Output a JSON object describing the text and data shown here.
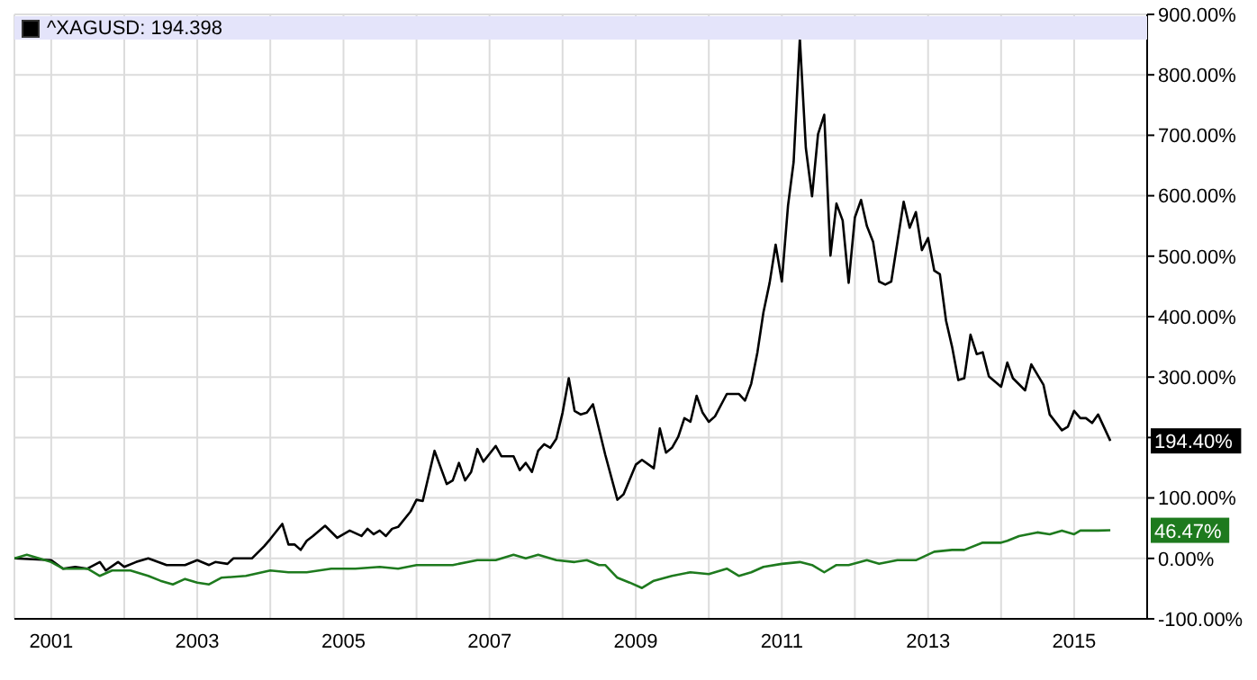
{
  "chart_data": {
    "type": "line",
    "xlim": [
      "2000-07",
      "2016-01"
    ],
    "xticks": [
      {
        "value": "2001-01",
        "label": "2001"
      },
      {
        "value": "2002-01",
        "label": null
      },
      {
        "value": "2003-01",
        "label": "2003"
      },
      {
        "value": "2004-01",
        "label": null
      },
      {
        "value": "2005-01",
        "label": "2005"
      },
      {
        "value": "2006-01",
        "label": null
      },
      {
        "value": "2007-01",
        "label": "2007"
      },
      {
        "value": "2008-01",
        "label": null
      },
      {
        "value": "2009-01",
        "label": "2009"
      },
      {
        "value": "2010-01",
        "label": null
      },
      {
        "value": "2011-01",
        "label": "2011"
      },
      {
        "value": "2012-01",
        "label": null
      },
      {
        "value": "2013-01",
        "label": "2013"
      },
      {
        "value": "2014-01",
        "label": null
      },
      {
        "value": "2015-01",
        "label": "2015"
      }
    ],
    "ylim": [
      -100,
      900
    ],
    "yticks": [
      {
        "value": -100,
        "label": "-100.00%"
      },
      {
        "value": 0,
        "label": "0.00%"
      },
      {
        "value": 100,
        "label": "100.00%"
      },
      {
        "value": 200,
        "label": null
      },
      {
        "value": 300,
        "label": "300.00%"
      },
      {
        "value": 400,
        "label": "400.00%"
      },
      {
        "value": 500,
        "label": "500.00%"
      },
      {
        "value": 600,
        "label": "600.00%"
      },
      {
        "value": 700,
        "label": "700.00%"
      },
      {
        "value": 800,
        "label": "800.00%"
      },
      {
        "value": 900,
        "label": "900.00%"
      }
    ],
    "grid": true,
    "legend": "top left",
    "marker": "none",
    "annotations": [
      {
        "text": "194.40%",
        "x": "2015-07",
        "y": 194.4
      },
      {
        "text": "46.47%",
        "x": "2015-07",
        "y": 46.47
      }
    ],
    "series": [
      {
        "name": "^XAGUSD: 194.398",
        "color": "#000000",
        "x": [
          "2000-07",
          "2001-01",
          "2001-03",
          "2001-05",
          "2001-07",
          "2001-09",
          "2001-10",
          "2001-12",
          "2002-01",
          "2002-03",
          "2002-05",
          "2002-08",
          "2002-11",
          "2003-01",
          "2003-03",
          "2003-04",
          "2003-06",
          "2003-07",
          "2003-10",
          "2003-12",
          "2004-01",
          "2004-03",
          "2004-04",
          "2004-05",
          "2004-06",
          "2004-07",
          "2004-08",
          "2004-10",
          "2004-12",
          "2005-02",
          "2005-04",
          "2005-05",
          "2005-06",
          "2005-07",
          "2005-08",
          "2005-09",
          "2005-10",
          "2005-12",
          "2006-01",
          "2006-02",
          "2006-04",
          "2006-06",
          "2006-07",
          "2006-08",
          "2006-09",
          "2006-10",
          "2006-11",
          "2006-12",
          "2007-02",
          "2007-03",
          "2007-05",
          "2007-06",
          "2007-07",
          "2007-08",
          "2007-09",
          "2007-10",
          "2007-11",
          "2007-12",
          "2008-01",
          "2008-02",
          "2008-03",
          "2008-04",
          "2008-05",
          "2008-06",
          "2008-08",
          "2008-10",
          "2008-11",
          "2009-01",
          "2009-02",
          "2009-04",
          "2009-05",
          "2009-06",
          "2009-07",
          "2009-08",
          "2009-09",
          "2009-10",
          "2009-11",
          "2009-12",
          "2010-01",
          "2010-02",
          "2010-04",
          "2010-06",
          "2010-07",
          "2010-08",
          "2010-09",
          "2010-10",
          "2010-11",
          "2010-12",
          "2011-01",
          "2011-02",
          "2011-03",
          "2011-04",
          "2011-05",
          "2011-06",
          "2011-07",
          "2011-08",
          "2011-09",
          "2011-10",
          "2011-11",
          "2011-12",
          "2012-01",
          "2012-02",
          "2012-03",
          "2012-04",
          "2012-05",
          "2012-06",
          "2012-07",
          "2012-09",
          "2012-10",
          "2012-11",
          "2012-12",
          "2013-01",
          "2013-02",
          "2013-03",
          "2013-04",
          "2013-05",
          "2013-06",
          "2013-07",
          "2013-08",
          "2013-09",
          "2013-10",
          "2013-11",
          "2014-01",
          "2014-02",
          "2014-03",
          "2014-05",
          "2014-06",
          "2014-08",
          "2014-09",
          "2014-11",
          "2014-12",
          "2015-01",
          "2015-02",
          "2015-03",
          "2015-04",
          "2015-05",
          "2015-07"
        ],
        "values": [
          0,
          -3,
          -17,
          -14,
          -17,
          -6,
          -20,
          -6,
          -14,
          -6,
          0,
          -11,
          -11,
          -3,
          -11,
          -6,
          -9,
          0,
          0,
          20,
          32,
          57,
          23,
          23,
          14,
          29,
          37,
          54,
          34,
          46,
          37,
          49,
          40,
          46,
          37,
          49,
          52,
          77,
          97,
          95,
          178,
          123,
          129,
          158,
          129,
          143,
          181,
          160,
          186,
          169,
          169,
          146,
          158,
          143,
          178,
          189,
          183,
          198,
          241,
          298,
          244,
          238,
          241,
          255,
          172,
          97,
          106,
          155,
          163,
          149,
          215,
          175,
          183,
          201,
          232,
          226,
          269,
          241,
          226,
          235,
          272,
          272,
          261,
          289,
          341,
          407,
          456,
          519,
          458,
          584,
          656,
          860,
          679,
          599,
          702,
          734,
          501,
          587,
          559,
          456,
          564,
          593,
          550,
          524,
          458,
          453,
          458,
          590,
          547,
          573,
          510,
          530,
          476,
          470,
          393,
          350,
          295,
          298,
          370,
          338,
          341,
          301,
          284,
          324,
          298,
          278,
          321,
          287,
          238,
          212,
          218,
          244,
          232,
          232,
          224,
          238,
          194.4
        ]
      },
      {
        "color": "#1e7a1e",
        "x": [
          "2000-07",
          "2000-09",
          "2001-01",
          "2001-03",
          "2001-07",
          "2001-09",
          "2001-11",
          "2002-02",
          "2002-05",
          "2002-07",
          "2002-09",
          "2002-11",
          "2003-01",
          "2003-03",
          "2003-05",
          "2003-09",
          "2004-01",
          "2004-04",
          "2004-07",
          "2004-11",
          "2005-03",
          "2005-07",
          "2005-10",
          "2006-01",
          "2006-05",
          "2006-07",
          "2006-11",
          "2007-02",
          "2007-05",
          "2007-07",
          "2007-09",
          "2007-12",
          "2008-03",
          "2008-05",
          "2008-07",
          "2008-08",
          "2008-10",
          "2008-12",
          "2009-02",
          "2009-04",
          "2009-07",
          "2009-10",
          "2010-01",
          "2010-04",
          "2010-06",
          "2010-08",
          "2010-10",
          "2011-01",
          "2011-04",
          "2011-06",
          "2011-08",
          "2011-10",
          "2011-12",
          "2012-03",
          "2012-05",
          "2012-08",
          "2012-11",
          "2013-02",
          "2013-05",
          "2013-07",
          "2013-10",
          "2014-01",
          "2014-02",
          "2014-04",
          "2014-07",
          "2014-09",
          "2014-11",
          "2015-01",
          "2015-02",
          "2015-05",
          "2015-07"
        ],
        "values": [
          0,
          6,
          -6,
          -17,
          -17,
          -29,
          -20,
          -20,
          -29,
          -37,
          -43,
          -34,
          -40,
          -43,
          -32,
          -29,
          -20,
          -23,
          -23,
          -17,
          -17,
          -14,
          -17,
          -11,
          -11,
          -11,
          -3,
          -3,
          6,
          0,
          6,
          -3,
          -6,
          -3,
          -11,
          -11,
          -32,
          -40,
          -49,
          -37,
          -29,
          -23,
          -26,
          -17,
          -29,
          -23,
          -14,
          -9,
          -6,
          -11,
          -23,
          -11,
          -11,
          -3,
          -9,
          -3,
          -3,
          11,
          14,
          14,
          26,
          26,
          29,
          37,
          43,
          40,
          46,
          40,
          46,
          46,
          46.47
        ]
      }
    ]
  }
}
